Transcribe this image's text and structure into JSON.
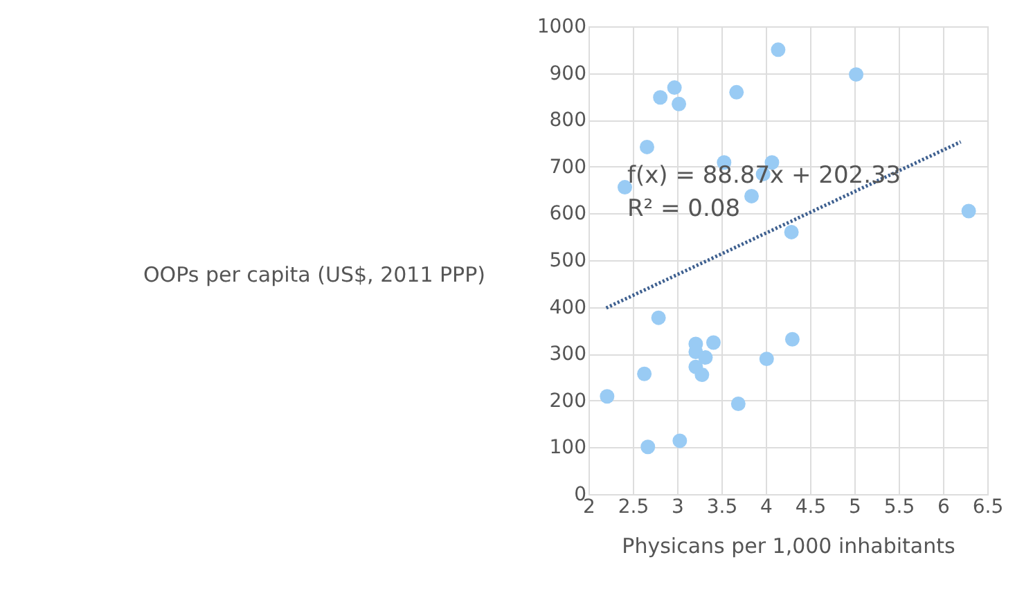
{
  "chart_data": {
    "type": "scatter",
    "xlabel": "Physicans per 1,000 inhabitants",
    "ylabel": "OOPs per capita (US$, 2011 PPP)",
    "xlim": [
      2,
      6.5
    ],
    "xticks": [
      2,
      2.5,
      3,
      3.5,
      4,
      4.5,
      5,
      5.5,
      6,
      6.5
    ],
    "ylim": [
      0,
      1000
    ],
    "yticks": [
      0,
      100,
      200,
      300,
      400,
      500,
      600,
      700,
      800,
      900,
      1000
    ],
    "grid": true,
    "legend": false,
    "annotations": [
      "f(x) = 88.87x + 202.33",
      "R² = 0.08"
    ],
    "series": [
      {
        "color": "#99cbf4",
        "marker": "circle",
        "x": [
          4.14,
          5.02,
          2.97,
          2.81,
          3.02,
          3.67,
          2.66,
          2.41,
          3.53,
          4.07,
          3.97,
          3.84,
          4.29,
          6.29,
          2.79,
          3.21,
          3.41,
          4.3,
          3.21,
          3.32,
          4.01,
          3.21,
          3.28,
          2.63,
          2.21,
          3.69,
          2.67,
          3.03
        ],
        "values": [
          950,
          897,
          869,
          848,
          834,
          859,
          742,
          656,
          709,
          709,
          684,
          637,
          560,
          605,
          377,
          321,
          324,
          331,
          304,
          292,
          289,
          272,
          255,
          257,
          209,
          193,
          101,
          114
        ]
      },
      {
        "type": "line",
        "color": "#3d5f8f",
        "marker": "none",
        "line_style": "dotted",
        "x": [
          2.2,
          6.2
        ],
        "values": [
          398,
          753
        ]
      }
    ]
  }
}
